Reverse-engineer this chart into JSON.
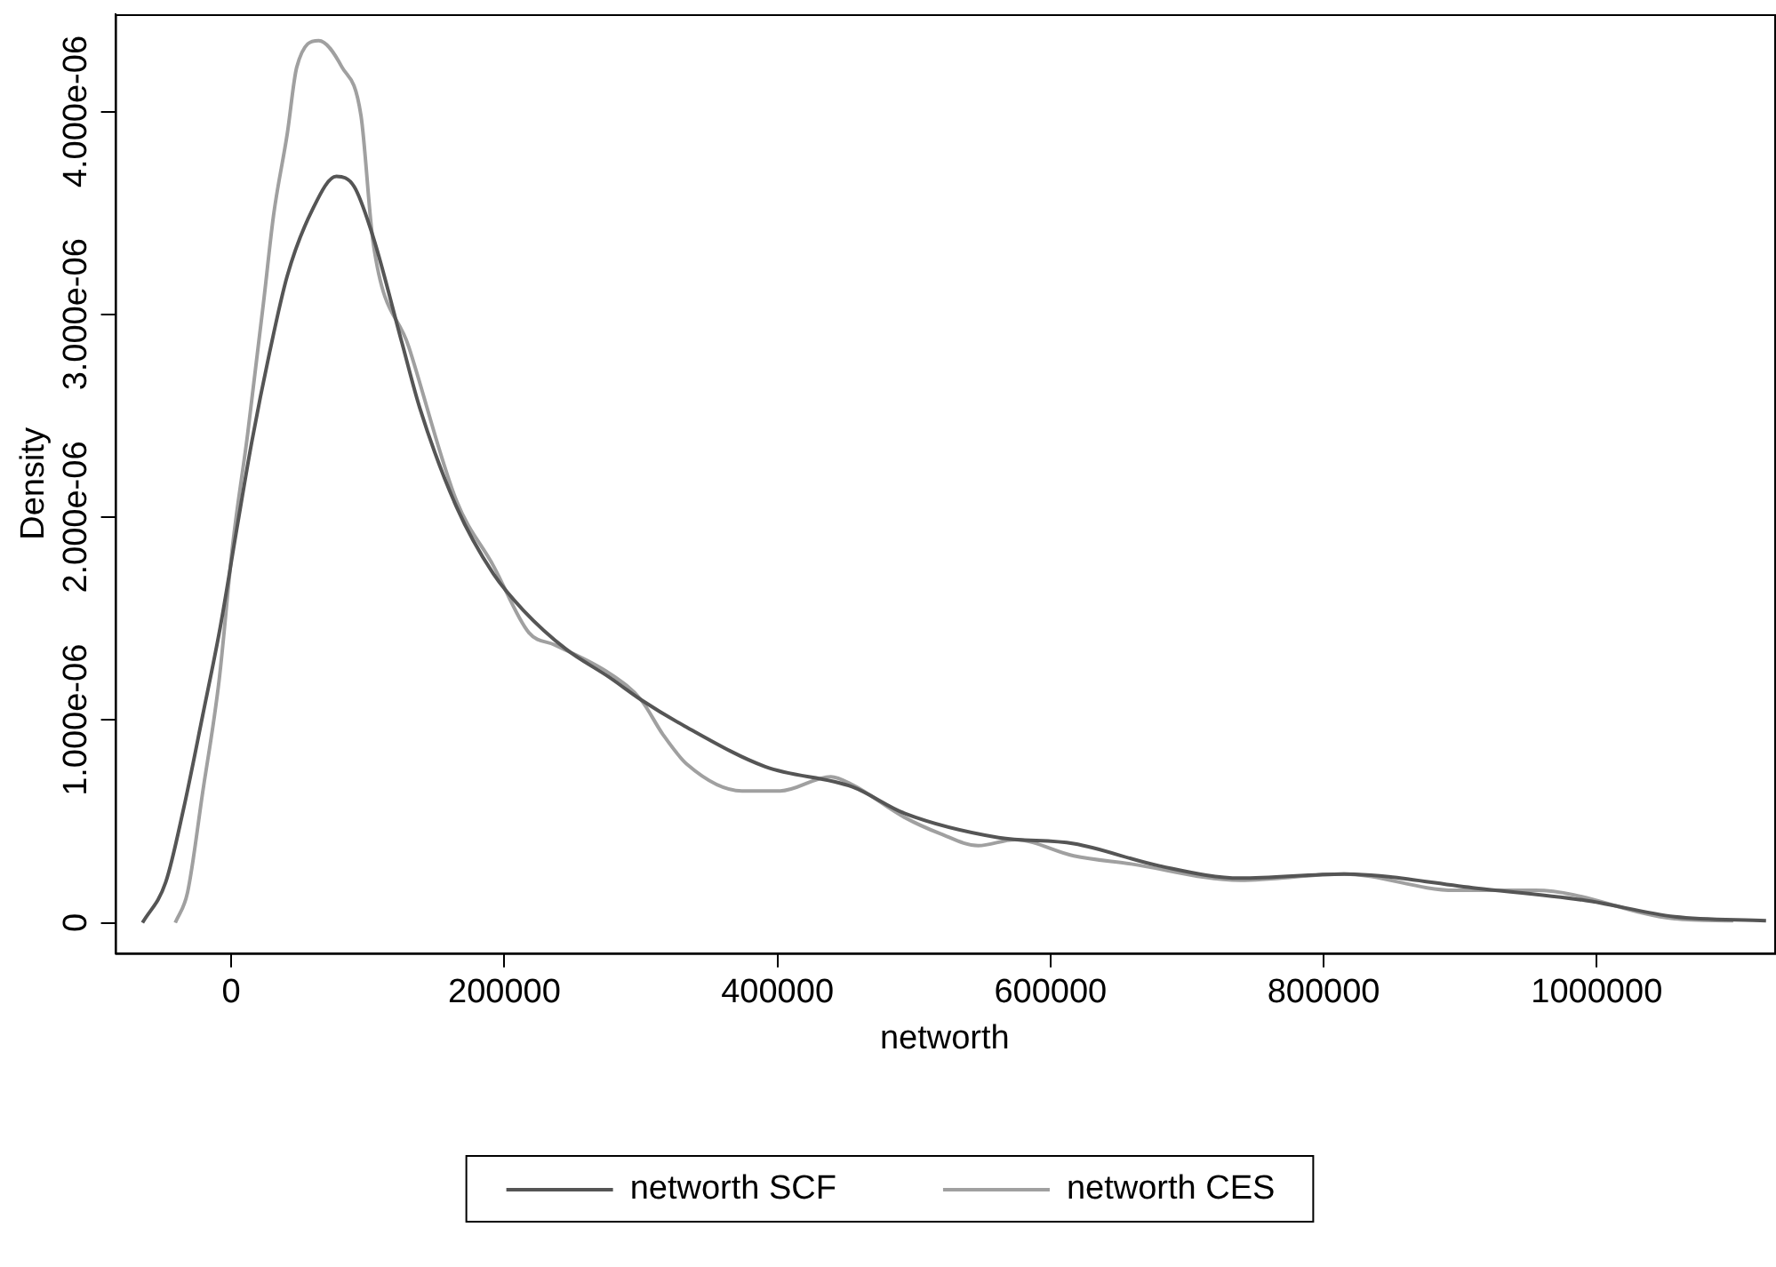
{
  "chart_data": {
    "type": "line",
    "xlabel": "networth",
    "ylabel": "Density",
    "xlim": [
      -85000,
      1130000
    ],
    "ylim": [
      -1.5e-07,
      4.48e-06
    ],
    "xticks": [
      0,
      200000,
      400000,
      600000,
      800000,
      1000000
    ],
    "yticks": [
      0,
      {
        "value": 1e-06,
        "label": "1.000e-06"
      },
      {
        "value": 2e-06,
        "label": "2.000e-06"
      },
      {
        "value": 3e-06,
        "label": "3.000e-06"
      },
      {
        "value": 4e-06,
        "label": "4.000e-06"
      }
    ],
    "grid": false,
    "legend": "bottom",
    "marker": "none",
    "line_style": "solid",
    "series": [
      {
        "name": "networth SCF",
        "color": "#555555",
        "x": [
          -65000,
          -48000,
          -35000,
          -21000,
          -8000,
          4000,
          15000,
          28000,
          41000,
          59000,
          77000,
          90000,
          104000,
          125000,
          138000,
          165000,
          192000,
          214000,
          245000,
          277000,
          300000,
          332000,
          391000,
          455000,
          493000,
          562000,
          617000,
          680000,
          739000,
          815000,
          912000,
          992000,
          1057000,
          1124000
        ],
        "values": [
          0,
          2e-07,
          5.6e-07,
          1.02e-06,
          1.46e-06,
          1.94e-06,
          2.37e-06,
          2.81e-06,
          3.19e-06,
          3.51e-06,
          3.68e-06,
          3.63e-06,
          3.38e-06,
          2.86e-06,
          2.54e-06,
          2.05e-06,
          1.72e-06,
          1.54e-06,
          1.35e-06,
          1.21e-06,
          1.1e-06,
          9.7e-07,
          7.7e-07,
          6.7e-07,
          5.4e-07,
          4.2e-07,
          3.9e-07,
          2.8e-07,
          2.2e-07,
          2.4e-07,
          1.7e-07,
          1.1e-07,
          3e-08,
          1e-08
        ]
      },
      {
        "name": "networth CES",
        "color": "#a0a0a0",
        "x": [
          -41000,
          -32000,
          -21000,
          -9000,
          1000,
          12000,
          24000,
          31000,
          41000,
          48000,
          64000,
          81000,
          95000,
          104000,
          130000,
          165000,
          192000,
          218000,
          237000,
          277000,
          300000,
          316000,
          334000,
          374000,
          402000,
          439000,
          455000,
          493000,
          519000,
          547000,
          574000,
          617000,
          659000,
          739000,
          815000,
          896000,
          955000,
          1057000,
          1100000
        ],
        "values": [
          0,
          1.5e-07,
          6.4e-07,
          1.19e-06,
          1.86e-06,
          2.41e-06,
          3.08e-06,
          3.49e-06,
          3.89e-06,
          4.22e-06,
          4.35e-06,
          4.22e-06,
          3.98e-06,
          3.35e-06,
          2.84e-06,
          2.08e-06,
          1.76e-06,
          1.43e-06,
          1.37e-06,
          1.23e-06,
          1.1e-06,
          9.3e-07,
          7.8e-07,
          6.5e-07,
          6.5e-07,
          7.2e-07,
          6.8e-07,
          5.2e-07,
          4.4e-07,
          3.8e-07,
          4.1e-07,
          3.3e-07,
          2.9e-07,
          2.1e-07,
          2.4e-07,
          1.6e-07,
          1.6e-07,
          2e-08,
          1e-08
        ]
      }
    ]
  }
}
